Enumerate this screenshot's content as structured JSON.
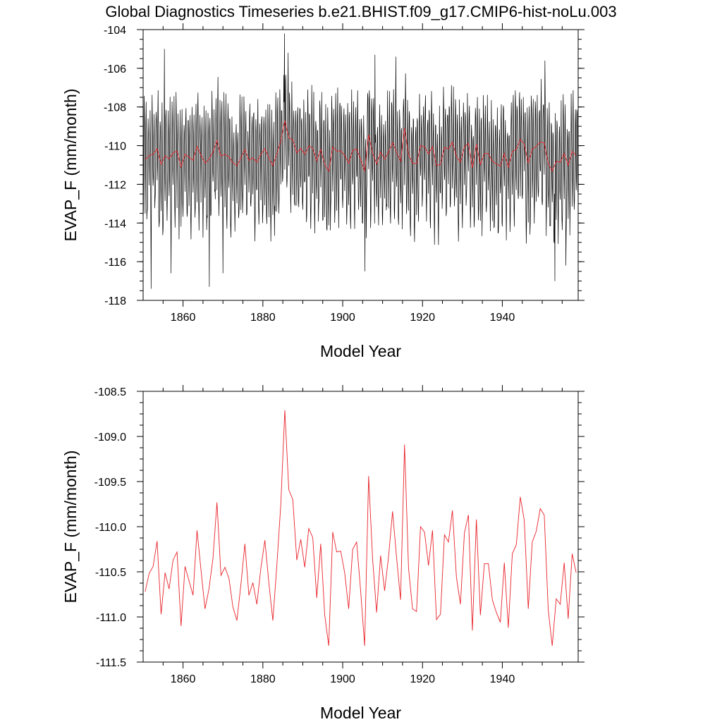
{
  "title": "Global Diagnostics Timeseries b.e21.BHIST.f09_g17.CMIP6-hist-noLu.003",
  "colors": {
    "monthly": "#000000",
    "annual": "#e8232a",
    "frame": "#000000"
  },
  "chart_data": [
    {
      "type": "line",
      "xlabel": "Model Year",
      "ylabel": "EVAP_F (mm/month)",
      "xlim": [
        1850,
        1959
      ],
      "ylim": [
        -118,
        -104
      ],
      "xticks": [
        1860,
        1880,
        1900,
        1920,
        1940
      ],
      "yticks": [
        -118,
        -116,
        -114,
        -112,
        -110,
        -108,
        -106,
        -104
      ],
      "ytick_labels": [
        "-118",
        "-116",
        "-114",
        "-112",
        "-110",
        "-108",
        "-106",
        "-104"
      ],
      "grid": false,
      "series": [
        {
          "key": "monthly",
          "x_start": 1850.0,
          "x_step": 0.0833333,
          "monthly_pattern": [
            -113.4,
            -112.2,
            -109.6,
            -107.6,
            -108.4,
            -110.6,
            -112.2,
            -110.6,
            -108.5,
            -107.6,
            -110.2,
            -112.8
          ],
          "annual_offsets_from": "annual",
          "extremes": [
            {
              "x": 1852.0,
              "y": -117.4
            },
            {
              "x": 1855.3,
              "y": -105.0
            },
            {
              "x": 1857.0,
              "y": -116.6
            },
            {
              "x": 1866.6,
              "y": -117.3
            },
            {
              "x": 1870.0,
              "y": -116.6
            },
            {
              "x": 1885.4,
              "y": -104.2
            },
            {
              "x": 1886.3,
              "y": -105.2
            },
            {
              "x": 1905.6,
              "y": -116.5
            },
            {
              "x": 1908.1,
              "y": -105.3
            },
            {
              "x": 1913.3,
              "y": -105.4
            },
            {
              "x": 1950.7,
              "y": -105.6
            },
            {
              "x": 1953.2,
              "y": -117.0
            },
            {
              "x": 1955.9,
              "y": -116.2
            }
          ]
        },
        {
          "key": "annual",
          "x": [
            1850.5,
            1851.5,
            1852.5,
            1853.5,
            1854.5,
            1855.5,
            1856.5,
            1857.5,
            1858.5,
            1859.5,
            1860.5,
            1861.5,
            1862.5,
            1863.5,
            1864.5,
            1865.5,
            1866.5,
            1867.5,
            1868.5,
            1869.5,
            1870.5,
            1871.5,
            1872.5,
            1873.5,
            1874.5,
            1875.5,
            1876.5,
            1877.5,
            1878.5,
            1879.5,
            1880.5,
            1881.5,
            1882.5,
            1883.5,
            1884.5,
            1885.5,
            1886.5,
            1887.5,
            1888.5,
            1889.5,
            1890.5,
            1891.5,
            1892.5,
            1893.5,
            1894.5,
            1895.5,
            1896.5,
            1897.5,
            1898.5,
            1899.5,
            1900.5,
            1901.5,
            1902.5,
            1903.5,
            1904.5,
            1905.5,
            1906.5,
            1907.5,
            1908.5,
            1909.5,
            1910.5,
            1911.5,
            1912.5,
            1913.5,
            1914.5,
            1915.5,
            1916.5,
            1917.5,
            1918.5,
            1919.5,
            1920.5,
            1921.5,
            1922.5,
            1923.5,
            1924.5,
            1925.5,
            1926.5,
            1927.5,
            1928.5,
            1929.5,
            1930.5,
            1931.5,
            1932.5,
            1933.5,
            1934.5,
            1935.5,
            1936.5,
            1937.5,
            1938.5,
            1939.5,
            1940.5,
            1941.5,
            1942.5,
            1943.5,
            1944.5,
            1945.5,
            1946.5,
            1947.5,
            1948.5,
            1949.5,
            1950.5,
            1951.5,
            1952.5,
            1953.5,
            1954.5,
            1955.5,
            1956.5,
            1957.5,
            1958.5
          ],
          "values": [
            -110.72,
            -110.52,
            -110.44,
            -110.16,
            -110.97,
            -110.51,
            -110.69,
            -110.37,
            -110.28,
            -111.1,
            -110.44,
            -110.6,
            -110.76,
            -110.04,
            -110.48,
            -110.91,
            -110.69,
            -110.35,
            -109.73,
            -110.54,
            -110.45,
            -110.57,
            -110.89,
            -111.04,
            -110.64,
            -110.19,
            -110.76,
            -110.62,
            -110.86,
            -110.46,
            -110.15,
            -110.62,
            -111.04,
            -110.43,
            -109.75,
            -108.71,
            -109.59,
            -109.7,
            -110.37,
            -110.14,
            -110.45,
            -110.02,
            -110.12,
            -110.79,
            -110.19,
            -110.98,
            -111.32,
            -110.06,
            -110.28,
            -110.27,
            -110.51,
            -110.91,
            -110.25,
            -110.17,
            -110.71,
            -111.32,
            -109.44,
            -110.36,
            -110.95,
            -110.32,
            -110.71,
            -110.33,
            -109.83,
            -110.34,
            -110.81,
            -109.09,
            -110.46,
            -110.91,
            -110.94,
            -110.0,
            -110.06,
            -110.43,
            -110.04,
            -111.03,
            -110.97,
            -110.09,
            -110.17,
            -109.82,
            -110.56,
            -110.86,
            -110.07,
            -109.87,
            -111.15,
            -109.92,
            -110.98,
            -110.41,
            -110.41,
            -110.81,
            -110.95,
            -111.06,
            -110.4,
            -111.12,
            -110.3,
            -110.2,
            -109.67,
            -109.93,
            -110.91,
            -110.17,
            -110.05,
            -109.8,
            -109.87,
            -110.92,
            -111.32,
            -110.8,
            -110.86,
            -110.4,
            -111.02,
            -110.3,
            -110.51
          ]
        }
      ]
    },
    {
      "type": "line",
      "xlabel": "Model Year",
      "ylabel": "EVAP_F (mm/month)",
      "xlim": [
        1850,
        1959
      ],
      "ylim": [
        -111.5,
        -108.5
      ],
      "xticks": [
        1860,
        1880,
        1900,
        1920,
        1940
      ],
      "yticks": [
        -111.5,
        -111.0,
        -110.5,
        -110.0,
        -109.5,
        -109.0,
        -108.5
      ],
      "ytick_labels": [
        "-111.5",
        "-111.0",
        "-110.5",
        "-110.0",
        "-109.5",
        "-109.0",
        "-108.5"
      ],
      "grid": false,
      "series": [
        {
          "key": "annual",
          "same_as": "panel1.annual"
        }
      ]
    }
  ]
}
